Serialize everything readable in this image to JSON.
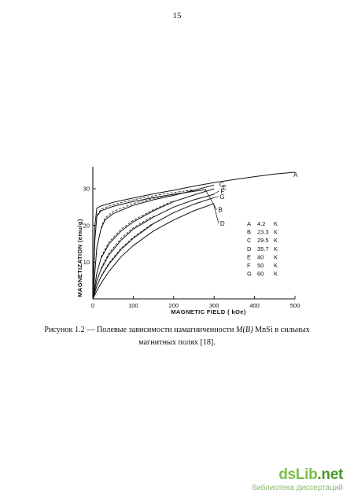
{
  "page": {
    "number": "15"
  },
  "caption": {
    "prefix": "Рисунок 1.2 — Полевые зависимости намагниченности ",
    "math": "M(B)",
    "middle": " MnSi в сильных",
    "line2": "магнитных полях [18]."
  },
  "footer": {
    "brand_main": "dsLib",
    "brand_tld": ".net",
    "tagline": "библиотека диссертаций"
  },
  "chart_data": {
    "type": "line",
    "xlabel": "MAGNETIC  FIELD  ( kOe)",
    "ylabel": "MAGNETIZATION  (emu/g)",
    "xlim": [
      0,
      500
    ],
    "ylim": [
      0,
      36
    ],
    "xticks": [
      0,
      100,
      200,
      300,
      400,
      500
    ],
    "yticks": [
      10,
      20,
      30
    ],
    "legend": [
      {
        "letter": "A",
        "value": "4.2",
        "unit": "K"
      },
      {
        "letter": "B",
        "value": "23.3",
        "unit": "K"
      },
      {
        "letter": "C",
        "value": "29.5",
        "unit": "K"
      },
      {
        "letter": "D",
        "value": "35.7",
        "unit": "K"
      },
      {
        "letter": "E",
        "value": "40",
        "unit": "K"
      },
      {
        "letter": "F",
        "value": "50",
        "unit": "K"
      },
      {
        "letter": "G",
        "value": "60",
        "unit": "K"
      }
    ],
    "series": [
      {
        "name": "A",
        "x": [
          0,
          5,
          10,
          20,
          50,
          100,
          150,
          200,
          250,
          300,
          350,
          400,
          450,
          500
        ],
        "y": [
          0,
          20,
          24.7,
          25.3,
          26.3,
          27.5,
          28.6,
          29.6,
          30.7,
          31.7,
          32.5,
          33.3,
          34,
          34.5
        ]
      },
      {
        "name": "B",
        "x": [
          0,
          5,
          10,
          20,
          50,
          100,
          150,
          200,
          250,
          280
        ],
        "y": [
          0,
          16,
          22.5,
          24,
          25.2,
          26.5,
          27.6,
          28.5,
          29.3,
          29.8
        ]
      },
      {
        "name": "C",
        "x": [
          0,
          10,
          20,
          30,
          50,
          100,
          150,
          200,
          250,
          300
        ],
        "y": [
          0,
          14,
          19,
          21.5,
          23.2,
          25.5,
          27,
          28.2,
          29.6,
          31
        ]
      },
      {
        "name": "E",
        "x": [
          0,
          10,
          20,
          40,
          70,
          100,
          150,
          200,
          250,
          300
        ],
        "y": [
          0,
          7,
          11,
          15,
          18.5,
          21,
          24,
          26.5,
          28.3,
          30
        ]
      },
      {
        "name": "F",
        "x": [
          0,
          10,
          20,
          40,
          70,
          100,
          150,
          200,
          250,
          300
        ],
        "y": [
          0,
          5,
          8,
          12,
          16,
          19,
          22.3,
          25,
          27,
          28.5
        ]
      },
      {
        "name": "G",
        "x": [
          0,
          10,
          20,
          40,
          70,
          100,
          150,
          200,
          250,
          300
        ],
        "y": [
          0,
          3.5,
          6,
          9.5,
          13.5,
          16.5,
          20.5,
          23.5,
          25.8,
          27.6
        ]
      },
      {
        "name": "D",
        "x": [
          0,
          10,
          20,
          40,
          70,
          100,
          150,
          200,
          250,
          300
        ],
        "y": [
          0,
          2.2,
          4.2,
          7.5,
          11.5,
          14.5,
          18.5,
          21.5,
          24,
          26
        ]
      }
    ],
    "dashed_series": [
      {
        "of": "B",
        "x": [
          10,
          20,
          50,
          100,
          150,
          200,
          250
        ],
        "y": [
          22.8,
          24.4,
          25.7,
          27,
          28.1,
          29,
          29.7
        ]
      },
      {
        "of": "C",
        "x": [
          20,
          30,
          50,
          100,
          150,
          200
        ],
        "y": [
          19.3,
          22,
          23.8,
          26,
          27.4,
          28.5
        ]
      },
      {
        "of": "E",
        "x": [
          20,
          40,
          70,
          100,
          150,
          200
        ],
        "y": [
          11.4,
          15.5,
          19,
          21.4,
          24.3,
          26.8
        ]
      },
      {
        "of": "F",
        "x": [
          20,
          40,
          70,
          100,
          150
        ],
        "y": [
          8.3,
          12.5,
          16.5,
          19.4,
          22.6
        ]
      },
      {
        "of": "G",
        "x": [
          20,
          40,
          70,
          100,
          150
        ],
        "y": [
          6.2,
          9.8,
          13.8,
          16.8,
          20.7
        ]
      }
    ],
    "curve_labels": [
      {
        "name": "A",
        "at": [
          500,
          34.5
        ]
      },
      {
        "name": "C",
        "at": [
          300,
          31
        ]
      },
      {
        "name": "E",
        "at": [
          300,
          30
        ]
      },
      {
        "name": "F",
        "at": [
          300,
          28.5
        ]
      },
      {
        "name": "G",
        "at": [
          300,
          27.6
        ]
      },
      {
        "name": "B",
        "at": [
          280,
          29.8
        ]
      },
      {
        "name": "D",
        "at": [
          300,
          26
        ]
      }
    ]
  }
}
